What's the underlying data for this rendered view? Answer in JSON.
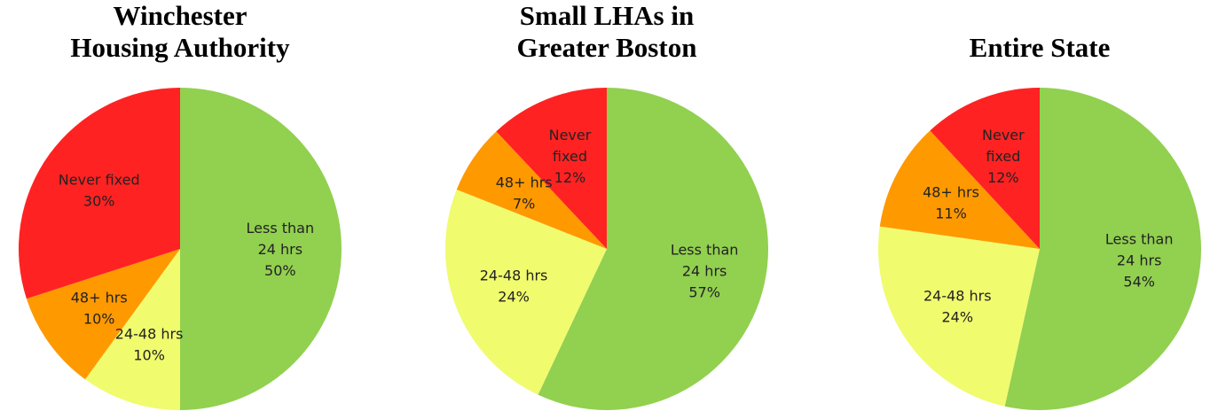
{
  "chart_data": [
    {
      "type": "pie",
      "title": "Winchester\nHousing Authority",
      "categories": [
        "Less than\n24 hrs",
        "24-48 hrs",
        "48+ hrs",
        "Never fixed"
      ],
      "values": [
        50,
        10,
        10,
        30
      ],
      "value_labels": [
        "50%",
        "10%",
        "10%",
        "30%"
      ],
      "colors": [
        "#92d050",
        "#f0fb6e",
        "#ff9900",
        "#ff2222"
      ]
    },
    {
      "type": "pie",
      "title": "Small LHAs in\nGreater Boston",
      "categories": [
        "Less than\n24 hrs",
        "24-48 hrs",
        "48+ hrs",
        "Never\nfixed"
      ],
      "values": [
        57,
        24,
        7,
        12
      ],
      "value_labels": [
        "57%",
        "24%",
        "7%",
        "12%"
      ],
      "colors": [
        "#92d050",
        "#f0fb6e",
        "#ff9900",
        "#ff2222"
      ]
    },
    {
      "type": "pie",
      "title": "Entire State",
      "categories": [
        "Less than\n24 hrs",
        "24-48 hrs",
        "48+ hrs",
        "Never\nfixed"
      ],
      "values": [
        54,
        24,
        11,
        12
      ],
      "value_labels": [
        "54%",
        "24%",
        "11%",
        "12%"
      ],
      "colors": [
        "#92d050",
        "#f0fb6e",
        "#ff9900",
        "#ff2222"
      ]
    }
  ]
}
